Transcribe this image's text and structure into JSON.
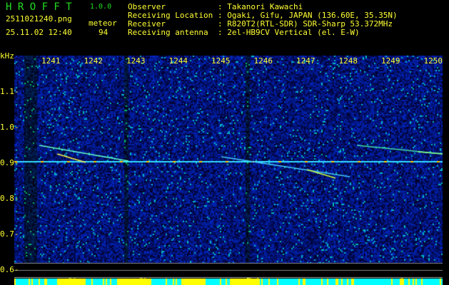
{
  "header": {
    "app_title": "H R O F F T",
    "version": "1.0.0",
    "filename": "2511021240.png",
    "datetime": "25.11.02 12:40",
    "meteor_label": "meteor",
    "meteor_count": "94",
    "info": [
      {
        "label": "Observer",
        "value": "Takanori Kawachi"
      },
      {
        "label": "Receiving Location",
        "value": "Ogaki, Gifu, JAPAN (136.60E, 35.35N)"
      },
      {
        "label": "Receiver",
        "value": "R820T2(RTL-SDR) SDR-Sharp 53.372MHz"
      },
      {
        "label": "Receiving antenna",
        "value": "2el-HB9CV Vertical (el. E-W)"
      }
    ]
  },
  "axes": {
    "y_unit": "kHz",
    "y_ticks": [
      "1.1",
      "1.0",
      "0.9",
      "0.8",
      "0.7",
      "0.6"
    ],
    "x_ticks": [
      "1241",
      "1242",
      "1243",
      "1244",
      "1245",
      "1246",
      "1247",
      "1248",
      "1249",
      "1250"
    ]
  },
  "colors": {
    "text": "#ffff33",
    "title": "#22dd22",
    "background": "#000000",
    "noise": "#0a1aa0",
    "bar_low": "#00ffff",
    "bar_high": "#ffff00"
  }
}
